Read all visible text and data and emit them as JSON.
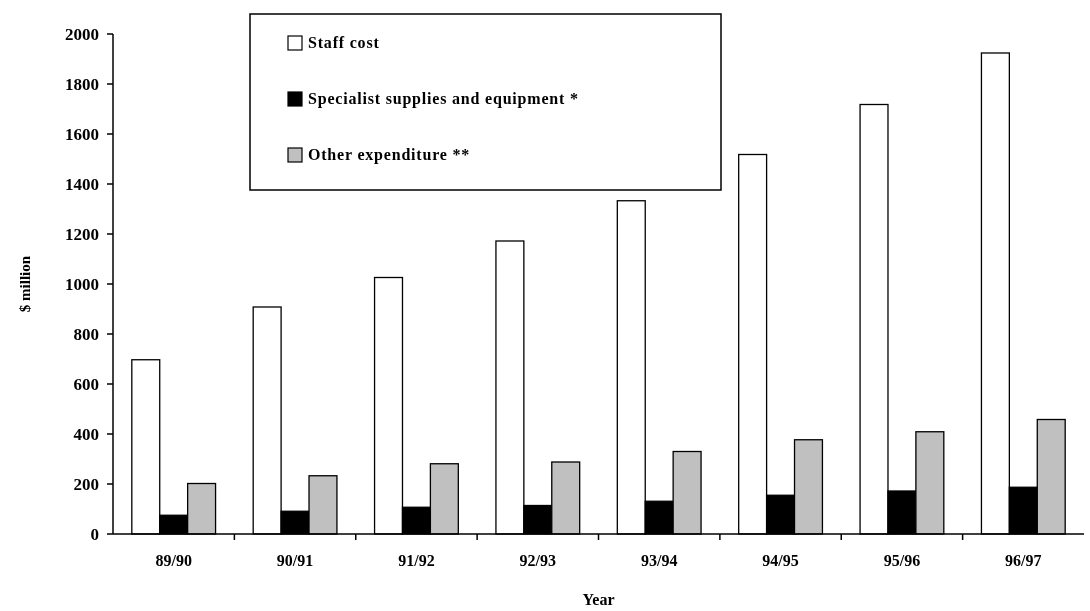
{
  "chart_data": {
    "type": "bar",
    "xlabel": "Year",
    "ylabel": "$ million",
    "categories": [
      "89/90",
      "90/91",
      "91/92",
      "92/93",
      "93/94",
      "94/95",
      "95/96",
      "96/97"
    ],
    "series": [
      {
        "name": "Staff cost",
        "color": "#ffffff",
        "values": [
          697,
          908,
          1026,
          1172,
          1333,
          1518,
          1718,
          1924
        ]
      },
      {
        "name": "Specialist supplies and equipment  *",
        "color": "#000000",
        "values": [
          75,
          91,
          107,
          114,
          131,
          155,
          172,
          187
        ]
      },
      {
        "name": "Other expenditure  **",
        "color": "#c0c0c0",
        "values": [
          202,
          233,
          281,
          288,
          330,
          377,
          409,
          458
        ]
      }
    ],
    "ylim": [
      0,
      2000
    ],
    "yticks": [
      0,
      200,
      400,
      600,
      800,
      1000,
      1200,
      1400,
      1600,
      1800,
      2000
    ],
    "grid": false,
    "legend": "top"
  }
}
